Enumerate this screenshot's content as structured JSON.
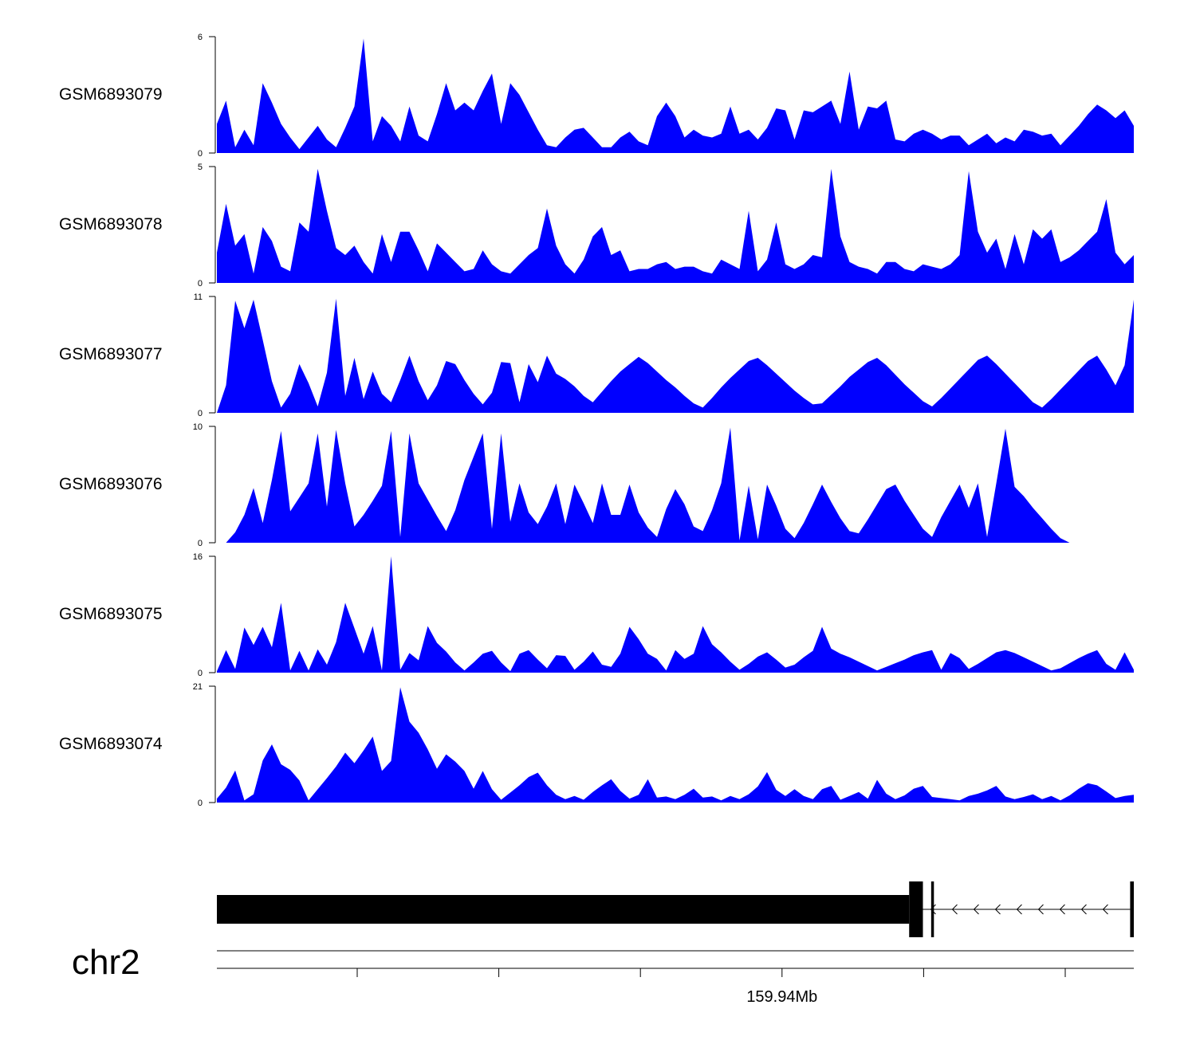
{
  "chart_data": {
    "type": "area",
    "chromosome": "chr2",
    "genome_axis": {
      "tick_label": "159.94Mb",
      "labeled_tick_index": 4,
      "tick_count": 6
    },
    "fill_color": "#0000ff",
    "x": [
      0.0,
      0.01,
      0.02,
      0.03,
      0.04,
      0.05,
      0.06,
      0.07,
      0.08,
      0.09,
      0.1,
      0.11,
      0.12,
      0.13,
      0.14,
      0.15,
      0.16,
      0.17,
      0.18,
      0.19,
      0.2,
      0.21,
      0.22,
      0.23,
      0.24,
      0.25,
      0.26,
      0.27,
      0.28,
      0.29,
      0.3,
      0.31,
      0.32,
      0.33,
      0.34,
      0.35,
      0.36,
      0.37,
      0.38,
      0.39,
      0.4,
      0.41,
      0.42,
      0.43,
      0.44,
      0.45,
      0.46,
      0.47,
      0.48,
      0.49,
      0.5,
      0.51,
      0.52,
      0.53,
      0.54,
      0.55,
      0.56,
      0.57,
      0.58,
      0.59,
      0.6,
      0.61,
      0.62,
      0.63,
      0.64,
      0.65,
      0.66,
      0.67,
      0.68,
      0.69,
      0.7,
      0.71,
      0.72,
      0.73,
      0.74,
      0.75,
      0.76,
      0.77,
      0.78,
      0.79,
      0.8,
      0.81,
      0.82,
      0.83,
      0.84,
      0.85,
      0.86,
      0.87,
      0.88,
      0.89,
      0.9,
      0.91,
      0.92,
      0.93,
      0.94,
      0.95,
      0.96,
      0.97,
      0.98,
      0.99,
      1.0
    ],
    "series": [
      {
        "name": "GSM6893079",
        "ylim": [
          0,
          6
        ],
        "y_ticks": [
          "0",
          "6"
        ],
        "values": [
          1.5,
          2.7,
          0.3,
          1.2,
          0.4,
          3.6,
          2.6,
          1.5,
          0.8,
          0.2,
          0.8,
          1.4,
          0.7,
          0.3,
          1.3,
          2.4,
          5.9,
          0.6,
          1.9,
          1.4,
          0.6,
          2.4,
          0.9,
          0.6,
          2.0,
          3.6,
          2.2,
          2.6,
          2.2,
          3.2,
          4.1,
          1.5,
          3.6,
          3.0,
          2.1,
          1.2,
          0.4,
          0.3,
          0.8,
          1.2,
          1.3,
          0.8,
          0.3,
          0.3,
          0.8,
          1.1,
          0.6,
          0.4,
          1.9,
          2.6,
          1.9,
          0.8,
          1.2,
          0.9,
          0.8,
          1.0,
          2.4,
          1.0,
          1.2,
          0.7,
          1.3,
          2.3,
          2.2,
          0.7,
          2.2,
          2.1,
          2.4,
          2.7,
          1.5,
          4.2,
          1.2,
          2.4,
          2.3,
          2.7,
          0.7,
          0.6,
          1.0,
          1.2,
          1.0,
          0.7,
          0.9,
          0.9,
          0.4,
          0.7,
          1.0,
          0.5,
          0.8,
          0.6,
          1.2,
          1.1,
          0.9,
          1.0,
          0.4,
          0.9,
          1.4,
          2.0,
          2.5,
          2.2,
          1.8,
          2.2,
          1.4
        ]
      },
      {
        "name": "GSM6893078",
        "ylim": [
          0,
          5
        ],
        "y_ticks": [
          "0",
          "5"
        ],
        "values": [
          1.3,
          3.4,
          1.6,
          2.1,
          0.4,
          2.4,
          1.8,
          0.7,
          0.5,
          2.6,
          2.2,
          4.9,
          3.1,
          1.5,
          1.2,
          1.6,
          0.9,
          0.4,
          2.1,
          0.9,
          2.2,
          2.2,
          1.4,
          0.5,
          1.7,
          1.3,
          0.9,
          0.5,
          0.6,
          1.4,
          0.8,
          0.5,
          0.4,
          0.8,
          1.2,
          1.5,
          3.2,
          1.6,
          0.8,
          0.4,
          1.0,
          2.0,
          2.4,
          1.2,
          1.4,
          0.5,
          0.6,
          0.6,
          0.8,
          0.9,
          0.6,
          0.7,
          0.7,
          0.5,
          0.4,
          1.0,
          0.8,
          0.6,
          3.1,
          0.5,
          1.0,
          2.6,
          0.8,
          0.6,
          0.8,
          1.2,
          1.1,
          4.9,
          2.0,
          0.9,
          0.7,
          0.6,
          0.4,
          0.9,
          0.9,
          0.6,
          0.5,
          0.8,
          0.7,
          0.6,
          0.8,
          1.2,
          4.8,
          2.2,
          1.3,
          1.9,
          0.6,
          2.1,
          0.8,
          2.3,
          1.9,
          2.3,
          0.9,
          1.1,
          1.4,
          1.8,
          2.2,
          3.6,
          1.3,
          0.8,
          1.2
        ]
      },
      {
        "name": "GSM6893077",
        "ylim": [
          0,
          11
        ],
        "y_ticks": [
          "0",
          "11"
        ],
        "values": [
          0,
          2.6,
          10.6,
          8.0,
          10.7,
          6.9,
          3.0,
          0.5,
          1.8,
          4.6,
          2.8,
          0.6,
          3.8,
          10.8,
          1.6,
          5.2,
          1.3,
          3.9,
          1.8,
          1.0,
          3.1,
          5.4,
          3.0,
          1.2,
          2.6,
          4.9,
          4.6,
          3.1,
          1.8,
          0.8,
          1.9,
          4.8,
          4.7,
          1.0,
          4.6,
          2.9,
          5.4,
          3.7,
          3.2,
          2.5,
          1.6,
          1.0,
          2.0,
          3.0,
          3.9,
          4.6,
          5.3,
          4.7,
          3.9,
          3.1,
          2.4,
          1.6,
          0.9,
          0.5,
          1.4,
          2.4,
          3.3,
          4.1,
          4.9,
          5.2,
          4.5,
          3.7,
          2.9,
          2.1,
          1.4,
          0.8,
          0.9,
          1.7,
          2.5,
          3.4,
          4.1,
          4.8,
          5.2,
          4.5,
          3.6,
          2.7,
          1.9,
          1.1,
          0.6,
          1.4,
          2.3,
          3.2,
          4.1,
          5.0,
          5.4,
          4.6,
          3.7,
          2.8,
          1.9,
          1.0,
          0.5,
          1.3,
          2.2,
          3.1,
          4.0,
          4.9,
          5.4,
          4.1,
          2.6,
          4.5,
          10.7
        ]
      },
      {
        "name": "GSM6893076",
        "ylim": [
          0,
          10
        ],
        "y_ticks": [
          "0",
          "10"
        ],
        "values": [
          0,
          0,
          0.9,
          2.4,
          4.7,
          1.7,
          5.4,
          9.6,
          2.7,
          3.9,
          5.1,
          9.4,
          3.1,
          9.7,
          5.1,
          1.4,
          2.4,
          3.6,
          4.9,
          9.6,
          0.5,
          9.4,
          5.1,
          3.7,
          2.3,
          1.0,
          2.8,
          5.4,
          7.4,
          9.4,
          1.2,
          9.4,
          1.8,
          5.1,
          2.6,
          1.6,
          3.1,
          5.1,
          1.6,
          5.0,
          3.4,
          1.7,
          5.1,
          2.4,
          2.4,
          5.0,
          2.6,
          1.3,
          0.5,
          2.9,
          4.6,
          3.3,
          1.4,
          1.0,
          2.8,
          5.1,
          9.9,
          0.2,
          4.9,
          0.3,
          5.0,
          3.2,
          1.2,
          0.4,
          1.7,
          3.3,
          5.0,
          3.5,
          2.1,
          1.0,
          0.8,
          2.0,
          3.3,
          4.6,
          5.0,
          3.6,
          2.4,
          1.2,
          0.5,
          2.2,
          3.6,
          5.0,
          3.0,
          5.1,
          0.5,
          5.1,
          9.8,
          4.8,
          4.0,
          3.0,
          2.1,
          1.2,
          0.4,
          0,
          0,
          0,
          0,
          0,
          0,
          0,
          0
        ]
      },
      {
        "name": "GSM6893075",
        "ylim": [
          0,
          16
        ],
        "y_ticks": [
          "0",
          "16"
        ],
        "values": [
          0.2,
          3.1,
          0.5,
          6.2,
          3.8,
          6.3,
          3.5,
          9.6,
          0.3,
          3.0,
          0.3,
          3.2,
          1.1,
          4.2,
          9.6,
          6.1,
          2.6,
          6.4,
          0.3,
          16.0,
          0.4,
          2.7,
          1.7,
          6.4,
          4.1,
          2.9,
          1.4,
          0.3,
          1.4,
          2.6,
          3.0,
          1.4,
          0.2,
          2.6,
          3.1,
          1.8,
          0.6,
          2.4,
          2.3,
          0.4,
          1.5,
          2.9,
          1.1,
          0.8,
          2.6,
          6.3,
          4.6,
          2.6,
          1.9,
          0.3,
          3.1,
          1.9,
          2.6,
          6.4,
          3.9,
          2.8,
          1.5,
          0.4,
          1.2,
          2.2,
          2.8,
          1.8,
          0.7,
          1.1,
          2.1,
          3.0,
          6.3,
          3.3,
          2.6,
          2.1,
          1.5,
          0.9,
          0.3,
          0.8,
          1.3,
          1.8,
          2.4,
          2.8,
          3.1,
          0.4,
          2.7,
          2.0,
          0.5,
          1.2,
          2.0,
          2.8,
          3.1,
          2.7,
          2.1,
          1.5,
          0.9,
          0.3,
          0.6,
          1.3,
          2.0,
          2.6,
          3.1,
          1.2,
          0.4,
          2.8,
          0.4
        ]
      },
      {
        "name": "GSM6893074",
        "ylim": [
          0,
          21
        ],
        "y_ticks": [
          "0",
          "21"
        ],
        "values": [
          0.7,
          2.7,
          5.8,
          0.4,
          1.5,
          7.6,
          10.5,
          6.9,
          5.9,
          4.0,
          0.4,
          2.4,
          4.4,
          6.5,
          9.0,
          7.1,
          9.4,
          11.9,
          5.7,
          7.5,
          20.8,
          14.6,
          12.6,
          9.6,
          6.1,
          8.7,
          7.4,
          5.7,
          2.5,
          5.7,
          2.4,
          0.5,
          1.8,
          3.1,
          4.6,
          5.4,
          3.1,
          1.4,
          0.6,
          1.2,
          0.5,
          1.9,
          3.1,
          4.2,
          2.1,
          0.7,
          1.4,
          4.2,
          0.9,
          1.1,
          0.6,
          1.4,
          2.5,
          0.9,
          1.1,
          0.4,
          1.2,
          0.6,
          1.5,
          2.9,
          5.5,
          2.3,
          1.2,
          2.4,
          1.2,
          0.6,
          2.4,
          3.0,
          0.5,
          1.2,
          1.9,
          0.7,
          4.1,
          1.6,
          0.6,
          1.3,
          2.5,
          3.0,
          1.0,
          0.8,
          0.6,
          0.4,
          1.2,
          1.6,
          2.2,
          3.0,
          1.1,
          0.6,
          1.0,
          1.5,
          0.6,
          1.2,
          0.4,
          1.3,
          2.5,
          3.5,
          3.1,
          2.0,
          0.8,
          1.2,
          1.4
        ]
      }
    ],
    "gene_model": {
      "strand": "-",
      "blocks": [
        {
          "start": 0.0,
          "end": 0.755,
          "kind": "utr"
        },
        {
          "start": 0.755,
          "end": 0.77,
          "kind": "exon"
        },
        {
          "start": 0.779,
          "end": 0.782,
          "kind": "exon"
        },
        {
          "start": 0.996,
          "end": 1.0,
          "kind": "exon"
        }
      ],
      "intron": {
        "start": 0.77,
        "end": 0.996
      }
    }
  }
}
